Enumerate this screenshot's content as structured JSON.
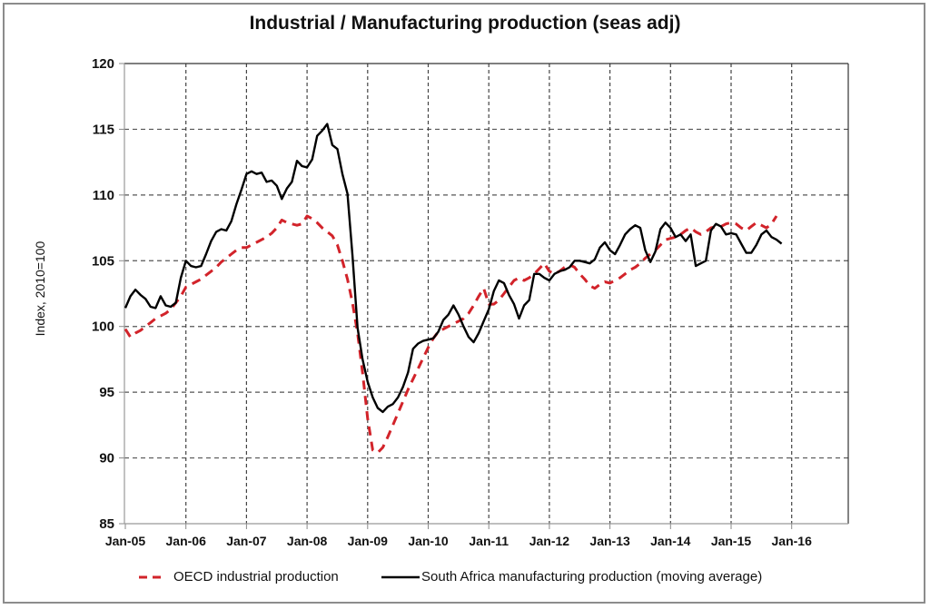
{
  "chart_data": {
    "type": "line",
    "title": "Industrial / Manufacturing production (seas adj)",
    "xlabel": "",
    "ylabel": "Index, 2010=100",
    "ylim": [
      85,
      120
    ],
    "yticks": [
      "85",
      "90",
      "95",
      "100",
      "105",
      "110",
      "115",
      "120"
    ],
    "xlim_months_from_jan05": [
      0,
      143
    ],
    "xticks": [
      "Jan-05",
      "Jan-06",
      "Jan-07",
      "Jan-08",
      "Jan-09",
      "Jan-10",
      "Jan-11",
      "Jan-12",
      "Jan-13",
      "Jan-14",
      "Jan-15",
      "Jan-16"
    ],
    "grid": true,
    "legend_position": "bottom",
    "x_unit": "months since Jan-05",
    "series": [
      {
        "name": "OECD industrial production",
        "color": "#d2232a",
        "style": "dashed",
        "start_month": 0,
        "values": [
          99.8,
          99.2,
          99.5,
          99.7,
          100.0,
          100.3,
          100.6,
          100.8,
          101.0,
          101.3,
          101.8,
          102.3,
          103.0,
          103.2,
          103.4,
          103.6,
          103.9,
          104.2,
          104.5,
          104.9,
          105.2,
          105.5,
          105.8,
          106.0,
          106.0,
          106.2,
          106.4,
          106.6,
          106.8,
          107.1,
          107.5,
          108.1,
          107.9,
          107.8,
          107.7,
          107.8,
          108.4,
          108.2,
          107.9,
          107.5,
          107.2,
          106.9,
          106.2,
          105.0,
          103.6,
          101.8,
          99.5,
          96.5,
          93.0,
          90.6,
          90.4,
          90.8,
          91.6,
          92.5,
          93.4,
          94.3,
          95.2,
          96.0,
          96.8,
          97.6,
          98.4,
          99.1,
          99.6,
          99.8,
          100.0,
          100.2,
          100.4,
          100.6,
          101.0,
          101.6,
          102.3,
          102.9,
          101.7,
          101.7,
          102.0,
          102.5,
          103.0,
          103.5,
          103.7,
          103.5,
          103.7,
          104.0,
          104.4,
          104.8,
          104.2,
          104.0,
          104.2,
          104.5,
          104.7,
          104.5,
          104.0,
          103.6,
          103.1,
          102.9,
          103.2,
          103.4,
          103.3,
          103.5,
          103.7,
          104.0,
          104.3,
          104.5,
          104.8,
          105.2,
          105.5,
          105.8,
          106.2,
          106.6,
          106.7,
          106.8,
          107.0,
          107.3,
          107.5,
          107.2,
          107.0,
          107.2,
          107.5,
          107.6,
          107.6,
          107.8,
          107.9,
          107.8,
          107.5,
          107.3,
          107.6,
          107.9,
          107.7,
          107.5,
          107.8,
          108.4
        ]
      },
      {
        "name": "South Africa manufacturing production (moving average)",
        "color": "#000000",
        "style": "solid",
        "start_month": 0,
        "values": [
          101.4,
          102.3,
          102.8,
          102.4,
          102.1,
          101.5,
          101.4,
          102.3,
          101.6,
          101.5,
          101.8,
          103.7,
          105.0,
          104.6,
          104.5,
          104.6,
          105.5,
          106.5,
          107.2,
          107.4,
          107.3,
          108.0,
          109.3,
          110.4,
          111.6,
          111.8,
          111.6,
          111.7,
          111.0,
          111.1,
          110.7,
          109.7,
          110.5,
          111.0,
          112.6,
          112.2,
          112.1,
          112.7,
          114.5,
          114.9,
          115.4,
          113.8,
          113.5,
          111.6,
          110.1,
          105.4,
          99.9,
          97.5,
          95.8,
          94.6,
          93.8,
          93.5,
          93.9,
          94.1,
          94.6,
          95.4,
          96.5,
          98.3,
          98.7,
          98.9,
          99.0,
          99.1,
          99.6,
          100.5,
          100.9,
          101.6,
          100.9,
          100.0,
          99.2,
          98.8,
          99.5,
          100.4,
          101.3,
          102.7,
          103.5,
          103.3,
          102.4,
          101.7,
          100.6,
          101.6,
          102.0,
          104.0,
          104.0,
          103.7,
          103.5,
          104.0,
          104.2,
          104.3,
          104.5,
          105.0,
          105.0,
          104.9,
          104.8,
          105.1,
          106.0,
          106.4,
          105.8,
          105.5,
          106.2,
          107.0,
          107.4,
          107.7,
          107.5,
          105.8,
          104.9,
          105.7,
          107.4,
          107.9,
          107.5,
          106.8,
          107.0,
          106.5,
          107.0,
          104.6,
          104.8,
          105.0,
          107.3,
          107.8,
          107.6,
          107.0,
          107.1,
          107.0,
          106.3,
          105.6,
          105.6,
          106.2,
          107.0,
          107.3,
          106.8,
          106.6,
          106.3
        ]
      }
    ]
  },
  "legend": {
    "items": [
      "OECD industrial production",
      "South Africa manufacturing production (moving average)"
    ]
  }
}
